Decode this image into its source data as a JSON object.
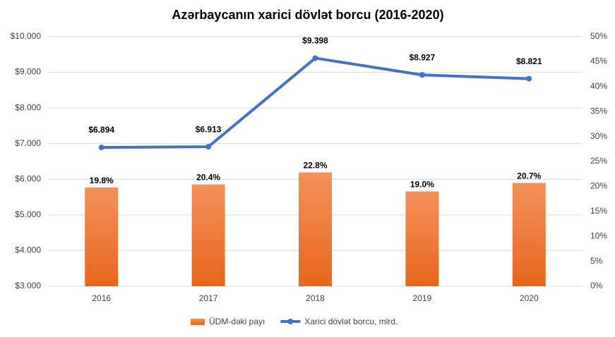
{
  "chart_data": {
    "type": "bar",
    "title": "Azərbaycanın xarici dövlət borcu (2016-2020)",
    "categories": [
      "2016",
      "2017",
      "2018",
      "2019",
      "2020"
    ],
    "series": [
      {
        "name": "ÜDM-dəki payı",
        "type": "bar",
        "axis": "y2",
        "color": "#ed7d31",
        "values": [
          19.8,
          20.4,
          22.8,
          19.0,
          20.7
        ],
        "value_labels": [
          "19.8%",
          "20.4%",
          "22.8%",
          "19.0%",
          "20.7%"
        ]
      },
      {
        "name": "Xarici dövlət borcu, mlrd.",
        "type": "line",
        "axis": "y",
        "color": "#4472c4",
        "values": [
          6.894,
          6.913,
          9.398,
          8.927,
          8.821
        ],
        "value_labels": [
          "$6.894",
          "$6.913",
          "$9.398",
          "$8.927",
          "$8.821"
        ]
      }
    ],
    "ylim": [
      3,
      10
    ],
    "yticks": [
      {
        "value": 3,
        "label": "$3.000"
      },
      {
        "value": 4,
        "label": "$4.000"
      },
      {
        "value": 5,
        "label": "$5.000"
      },
      {
        "value": 6,
        "label": "$6.000"
      },
      {
        "value": 7,
        "label": "$7.000"
      },
      {
        "value": 8,
        "label": "$8.000"
      },
      {
        "value": 9,
        "label": "$9.000"
      },
      {
        "value": 10,
        "label": "$10.000"
      }
    ],
    "y2lim": [
      0,
      50
    ],
    "y2ticks": [
      {
        "value": 0,
        "label": "0%"
      },
      {
        "value": 5,
        "label": "5%"
      },
      {
        "value": 10,
        "label": "10%"
      },
      {
        "value": 15,
        "label": "15%"
      },
      {
        "value": 20,
        "label": "20%"
      },
      {
        "value": 25,
        "label": "25%"
      },
      {
        "value": 30,
        "label": "30%"
      },
      {
        "value": 35,
        "label": "35%"
      },
      {
        "value": 40,
        "label": "40%"
      },
      {
        "value": 45,
        "label": "45%"
      },
      {
        "value": 50,
        "label": "50%"
      }
    ],
    "grid": true,
    "legend": "bottom"
  }
}
